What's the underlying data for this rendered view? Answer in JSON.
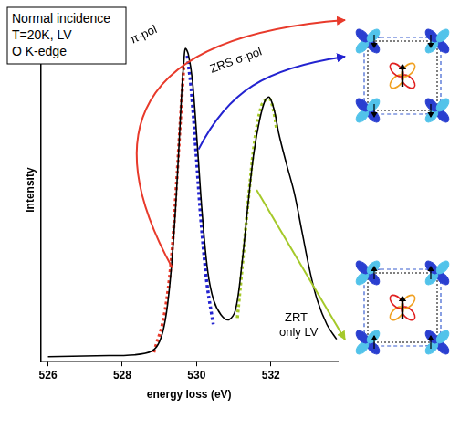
{
  "chart_data": {
    "type": "line",
    "info_box": [
      "Normal incidence",
      "T=20K, LV",
      "O K-edge"
    ],
    "x_label": "energy loss (eV)",
    "y_label": "Intensity",
    "xlim": [
      525.8,
      533.8
    ],
    "xticks": [
      526,
      528,
      530,
      532
    ],
    "ylim": [
      0,
      110
    ],
    "tick_labels": "x",
    "grid": false,
    "series": [
      {
        "color": "#000000",
        "line_style": "solid",
        "x": [
          526.0,
          527.3,
          528.34,
          528.8,
          529.01,
          529.16,
          529.29,
          529.42,
          529.53,
          529.61,
          529.66,
          529.7,
          529.78,
          529.89,
          530.02,
          530.15,
          530.3,
          530.46,
          530.66,
          530.87,
          531.05,
          531.23,
          531.39,
          531.54,
          531.7,
          531.85,
          531.96,
          532.09,
          532.22,
          532.42,
          532.63,
          532.84,
          533.05,
          533.25,
          533.51,
          533.77
        ],
        "values": [
          1.6,
          1.9,
          2.2,
          3.4,
          6.6,
          13.4,
          25.9,
          46.3,
          69.7,
          88.4,
          96.3,
          100.3,
          98.4,
          90.0,
          69.7,
          47.8,
          29.1,
          19.7,
          15.0,
          13.4,
          16.6,
          32.2,
          50.9,
          66.6,
          77.5,
          83.8,
          84.7,
          80.6,
          72.8,
          63.4,
          54.1,
          41.6,
          29.1,
          19.7,
          11.9,
          7.2
        ]
      },
      {
        "color": "#e83a2b",
        "line_style": "dotted",
        "x": [
          528.85,
          529.1,
          529.3,
          529.45,
          529.58,
          529.66
        ],
        "values": [
          3,
          13,
          30,
          55,
          80,
          95
        ]
      },
      {
        "color": "#2323d0",
        "line_style": "dotted",
        "x": [
          529.75,
          529.85,
          529.98,
          530.12,
          530.28,
          530.45
        ],
        "values": [
          98,
          88,
          68,
          45,
          25,
          12
        ]
      },
      {
        "color": "#a5c92a",
        "line_style": "dotted",
        "x": [
          531.1,
          531.25,
          531.42,
          531.58,
          531.75,
          531.88,
          531.98,
          532.08,
          532.15
        ],
        "values": [
          14,
          33,
          55,
          72,
          82,
          84,
          84,
          80,
          75
        ]
      }
    ],
    "annotations": [
      {
        "text": [
          "π-pol"
        ]
      },
      {
        "text": [
          "ZRS σ-pol"
        ]
      },
      {
        "text": [
          "ZRT",
          "only LV"
        ]
      }
    ]
  }
}
